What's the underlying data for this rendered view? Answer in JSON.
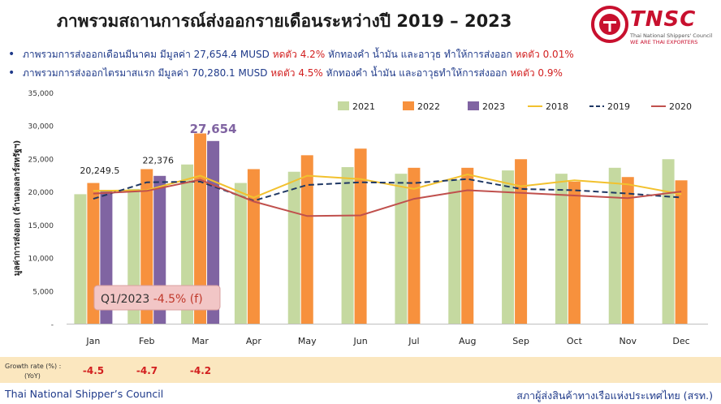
{
  "page": {
    "title": "ภาพรวมสถานการณ์ส่งออกรายเดือนระหว่างปี 2019 – 2023",
    "bullets": [
      {
        "text1": "ภาพรวมการส่งออกเดือนมีนาคม มีมูลค่า 27,654.4 MUSD ",
        "red1": "หดตัว 4.2%",
        "text2": " หักทองคำ น้ำมัน และอาวุธ ทำให้การส่งออก ",
        "red2": "หดตัว 0.01%"
      },
      {
        "text1": "ภาพรวมการส่งออกไตรมาสแรก มีมูลค่า 70,280.1 MUSD ",
        "red1": "หดตัว 4.5%",
        "text2": " หักทองคำ น้ำมัน และอาวุธทำให้การส่งออก ",
        "red2": "หดตัว 0.9%"
      }
    ],
    "logo": {
      "brand": "TNSC",
      "tagline1": "Thai National Shippers' Council",
      "tagline2": "WE ARE THAI EXPORTERS"
    },
    "growth": {
      "label_line1": "Growth rate (%) :",
      "label_line2": "(YoY)",
      "values": [
        "-4.5",
        "-4.7",
        "-4.2"
      ]
    },
    "footer": {
      "left": "Thai National Shipper’s Council",
      "right": "สภาผู้ส่งสินค้าทางเรือแห่งประเทศไทย (สรท.)"
    }
  },
  "chart_data": {
    "type": "bar",
    "ylabel": "มูลค่าการส่งออก (ล้านดอลลาร์สหรัฐฯ)",
    "ylim": [
      0,
      35000
    ],
    "yticks": [
      "-",
      "5,000",
      "10,000",
      "15,000",
      "20,000",
      "25,000",
      "30,000",
      "35,000"
    ],
    "categories": [
      "Jan",
      "Feb",
      "Mar",
      "Apr",
      "May",
      "Jun",
      "Jul",
      "Aug",
      "Sep",
      "Oct",
      "Nov",
      "Dec"
    ],
    "grid": false,
    "legend_position": "top-right",
    "bar_series": [
      {
        "name": "2021",
        "color": "#c5d9a0",
        "values": [
          19600,
          20400,
          24100,
          21300,
          23000,
          23700,
          22700,
          21800,
          23200,
          22700,
          23600,
          24900
        ]
      },
      {
        "name": "2022",
        "color": "#f7913d",
        "values": [
          21300,
          23400,
          28800,
          23400,
          25500,
          26500,
          23600,
          23600,
          24900,
          21500,
          22200,
          21700
        ]
      },
      {
        "name": "2023",
        "color": "#8064a2",
        "values": [
          20249.5,
          22376,
          27654
        ]
      }
    ],
    "line_series": [
      {
        "name": "2018",
        "color": "#f2c12e",
        "dash": "none",
        "values": [
          20100,
          20200,
          22400,
          19100,
          22400,
          21900,
          20400,
          22600,
          20800,
          21700,
          21100,
          19600
        ]
      },
      {
        "name": "2019",
        "color": "#1f3864",
        "dash": "7,4",
        "values": [
          18900,
          21400,
          21500,
          18600,
          21000,
          21400,
          21300,
          21900,
          20400,
          20200,
          19700,
          19100
        ]
      },
      {
        "name": "2020",
        "color": "#c0504d",
        "dash": "none",
        "values": [
          19700,
          20100,
          21800,
          18500,
          16300,
          16400,
          18900,
          20200,
          19800,
          19400,
          19000,
          20000
        ]
      }
    ],
    "data_labels": [
      {
        "series": "2023",
        "index": 0,
        "text": "20,249.5"
      },
      {
        "series": "2023",
        "index": 1,
        "text": "22,376"
      },
      {
        "series": "2023",
        "index": 2,
        "text": "27,654"
      }
    ],
    "annotation": {
      "text_prefix": "Q1/2023 ",
      "text_value": "-4.5% (f)"
    }
  }
}
